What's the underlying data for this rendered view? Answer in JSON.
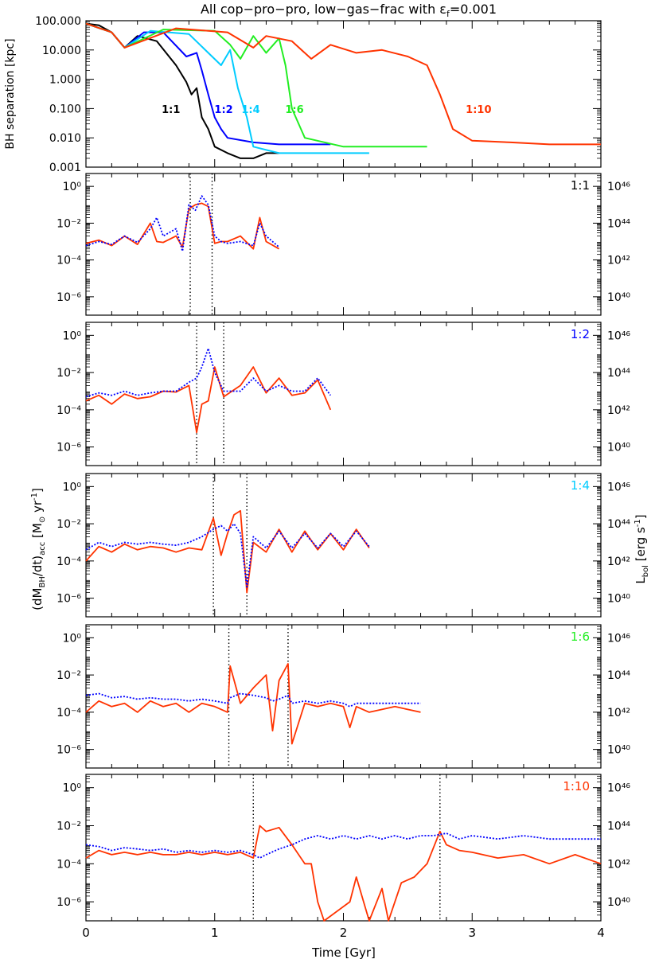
{
  "figure": {
    "title": "All cop−pro−pro, low−gas−frac with ε_f=0.001",
    "title_main": "All cop−pro−pro, low−gas−frac with ε",
    "title_sub": "f",
    "title_tail": "=0.001",
    "xlabel": "Time [Gyr]",
    "xticks": [
      "0",
      "1",
      "2",
      "3",
      "4"
    ],
    "xlim": [
      0,
      4
    ],
    "left_ylabel": "(dM_BH/dt)_acc [M⊙ yr^-1]",
    "right_ylabel": "L_bol [erg s^-1]"
  },
  "colors": {
    "1:1": "#000000",
    "1:2": "#0000ff",
    "1:4": "#00ccff",
    "1:6": "#22ee22",
    "1:10": "#ff3300",
    "dotted_line": "#0000ff",
    "accretion_line": "#ff3300"
  },
  "chart_data": [
    {
      "type": "line",
      "title": "All cop−pro−pro, low−gas−frac with ε_f=0.001",
      "xlabel": "",
      "ylabel": "BH separation [kpc]",
      "yscale": "log",
      "ylim": [
        0.001,
        100
      ],
      "xlim": [
        0,
        4
      ],
      "yticks": [
        "100.000",
        "10.000",
        "1.000",
        "0.100",
        "0.010",
        "0.001"
      ],
      "series": [
        {
          "name": "1:1",
          "x": [
            0,
            0.1,
            0.2,
            0.3,
            0.4,
            0.55,
            0.7,
            0.78,
            0.82,
            0.86,
            0.9,
            0.95,
            1.0,
            1.1,
            1.2,
            1.3,
            1.4,
            1.5
          ],
          "y": [
            80,
            70,
            40,
            12,
            30,
            20,
            3,
            0.8,
            0.3,
            0.5,
            0.05,
            0.02,
            0.005,
            0.003,
            0.002,
            0.002,
            0.003,
            0.003
          ]
        },
        {
          "name": "1:2",
          "x": [
            0,
            0.2,
            0.3,
            0.45,
            0.6,
            0.78,
            0.86,
            0.9,
            0.95,
            1.0,
            1.05,
            1.1,
            1.3,
            1.5,
            1.7,
            1.9
          ],
          "y": [
            80,
            40,
            12,
            40,
            40,
            6,
            8,
            2,
            0.3,
            0.05,
            0.02,
            0.01,
            0.007,
            0.006,
            0.006,
            0.006
          ]
        },
        {
          "name": "1:4",
          "x": [
            0,
            0.2,
            0.3,
            0.5,
            0.8,
            0.95,
            1.05,
            1.12,
            1.18,
            1.25,
            1.3,
            1.5,
            1.8,
            2.0,
            2.2
          ],
          "y": [
            80,
            40,
            12,
            45,
            35,
            8,
            3,
            10,
            0.5,
            0.05,
            0.005,
            0.003,
            0.003,
            0.003,
            0.003
          ]
        },
        {
          "name": "1:6",
          "x": [
            0,
            0.2,
            0.3,
            0.6,
            1.0,
            1.12,
            1.2,
            1.3,
            1.4,
            1.5,
            1.55,
            1.6,
            1.7,
            2.0,
            2.3,
            2.65
          ],
          "y": [
            80,
            40,
            12,
            50,
            45,
            15,
            5,
            30,
            8,
            25,
            3,
            0.1,
            0.01,
            0.005,
            0.005,
            0.005
          ]
        },
        {
          "name": "1:10",
          "x": [
            0,
            0.2,
            0.3,
            0.7,
            1.1,
            1.3,
            1.4,
            1.6,
            1.75,
            1.9,
            2.1,
            2.3,
            2.5,
            2.65,
            2.75,
            2.85,
            3.0,
            3.3,
            3.6,
            4.0
          ],
          "y": [
            80,
            40,
            12,
            55,
            40,
            12,
            30,
            20,
            5,
            15,
            8,
            10,
            6,
            3,
            0.3,
            0.02,
            0.008,
            0.007,
            0.006,
            0.006
          ]
        }
      ],
      "annotations": [
        "1:1",
        "1:2",
        "1:4",
        "1:6",
        "1:10"
      ]
    },
    {
      "type": "line",
      "label": "1:1",
      "label_color": "#000000",
      "ylabel": "(dM_BH/dt)_acc [M⊙ yr^-1]",
      "right_ylabel": "L_bol [erg s^-1]",
      "yscale": "log",
      "ylim": [
        1e-07,
        5
      ],
      "xlim": [
        0,
        4
      ],
      "yticks": [
        "10^0",
        "10^-2",
        "10^-4",
        "10^-6"
      ],
      "right_yticks": [
        "10^46",
        "10^44",
        "10^42",
        "10^40"
      ],
      "vlines": [
        0.81,
        0.98
      ],
      "series": [
        {
          "name": "accretion",
          "x": [
            0,
            0.1,
            0.2,
            0.3,
            0.4,
            0.5,
            0.55,
            0.6,
            0.7,
            0.75,
            0.8,
            0.85,
            0.9,
            0.95,
            1.0,
            1.05,
            1.1,
            1.2,
            1.3,
            1.35,
            1.4,
            1.5
          ],
          "y": [
            0.0008,
            0.0012,
            0.0006,
            0.002,
            0.0007,
            0.01,
            0.001,
            0.0009,
            0.002,
            0.0005,
            0.06,
            0.1,
            0.12,
            0.08,
            0.0008,
            0.001,
            0.001,
            0.002,
            0.0004,
            0.02,
            0.001,
            0.0004
          ]
        },
        {
          "name": "luminosity",
          "x": [
            0,
            0.1,
            0.2,
            0.3,
            0.4,
            0.5,
            0.55,
            0.6,
            0.7,
            0.75,
            0.8,
            0.85,
            0.9,
            0.95,
            1.0,
            1.05,
            1.1,
            1.2,
            1.3,
            1.35,
            1.4,
            1.5
          ],
          "y": [
            0.0006,
            0.001,
            0.0007,
            0.002,
            0.0009,
            0.005,
            0.02,
            0.002,
            0.005,
            0.0003,
            0.1,
            0.05,
            0.3,
            0.1,
            0.002,
            0.001,
            0.0008,
            0.001,
            0.0006,
            0.01,
            0.002,
            0.0005
          ]
        }
      ]
    },
    {
      "type": "line",
      "label": "1:2",
      "label_color": "#0000ff",
      "yscale": "log",
      "ylim": [
        1e-07,
        5
      ],
      "xlim": [
        0,
        4
      ],
      "yticks": [
        "10^0",
        "10^-2",
        "10^-4",
        "10^-6"
      ],
      "right_yticks": [
        "10^46",
        "10^44",
        "10^42",
        "10^40"
      ],
      "vlines": [
        0.86,
        1.07
      ],
      "series": [
        {
          "name": "accretion",
          "x": [
            0,
            0.1,
            0.2,
            0.3,
            0.4,
            0.5,
            0.6,
            0.7,
            0.8,
            0.86,
            0.9,
            0.95,
            1.0,
            1.07,
            1.2,
            1.3,
            1.4,
            1.5,
            1.6,
            1.7,
            1.8,
            1.9
          ],
          "y": [
            0.0003,
            0.0006,
            0.0002,
            0.0007,
            0.0004,
            0.0005,
            0.001,
            0.0009,
            0.002,
            6e-06,
            0.0002,
            0.0003,
            0.02,
            0.0005,
            0.002,
            0.02,
            0.0008,
            0.005,
            0.0006,
            0.0008,
            0.004,
            0.0001
          ]
        },
        {
          "name": "luminosity",
          "x": [
            0,
            0.1,
            0.2,
            0.3,
            0.4,
            0.5,
            0.6,
            0.7,
            0.8,
            0.86,
            0.9,
            0.95,
            1.0,
            1.07,
            1.2,
            1.3,
            1.4,
            1.5,
            1.6,
            1.7,
            1.8,
            1.9
          ],
          "y": [
            0.0005,
            0.0008,
            0.0006,
            0.001,
            0.0006,
            0.0008,
            0.001,
            0.001,
            0.003,
            0.005,
            0.02,
            0.2,
            0.01,
            0.001,
            0.001,
            0.005,
            0.001,
            0.002,
            0.001,
            0.001,
            0.005,
            0.0006
          ]
        }
      ]
    },
    {
      "type": "line",
      "label": "1:4",
      "label_color": "#00ccff",
      "yscale": "log",
      "ylim": [
        1e-07,
        5
      ],
      "xlim": [
        0,
        4
      ],
      "yticks": [
        "10^0",
        "10^-2",
        "10^-4",
        "10^-6"
      ],
      "right_yticks": [
        "10^46",
        "10^44",
        "10^42",
        "10^40"
      ],
      "vlines": [
        0.99,
        1.25
      ],
      "series": [
        {
          "name": "accretion",
          "x": [
            0,
            0.1,
            0.2,
            0.3,
            0.4,
            0.5,
            0.6,
            0.7,
            0.8,
            0.9,
            0.99,
            1.05,
            1.1,
            1.15,
            1.2,
            1.25,
            1.3,
            1.4,
            1.5,
            1.6,
            1.7,
            1.8,
            1.9,
            2.0,
            2.1,
            2.2
          ],
          "y": [
            0.0001,
            0.0006,
            0.0003,
            0.0008,
            0.0004,
            0.0006,
            0.0005,
            0.0003,
            0.0005,
            0.0004,
            0.02,
            0.0002,
            0.003,
            0.03,
            0.05,
            2e-06,
            0.001,
            0.0003,
            0.005,
            0.0003,
            0.004,
            0.0004,
            0.003,
            0.0004,
            0.005,
            0.0005
          ]
        },
        {
          "name": "luminosity",
          "x": [
            0,
            0.1,
            0.2,
            0.3,
            0.4,
            0.5,
            0.6,
            0.7,
            0.8,
            0.9,
            0.99,
            1.05,
            1.1,
            1.15,
            1.2,
            1.25,
            1.3,
            1.4,
            1.5,
            1.6,
            1.7,
            1.8,
            1.9,
            2.0,
            2.1,
            2.2
          ],
          "y": [
            0.0004,
            0.001,
            0.0006,
            0.001,
            0.0008,
            0.001,
            0.0008,
            0.0007,
            0.001,
            0.002,
            0.005,
            0.008,
            0.004,
            0.01,
            0.003,
            4e-06,
            0.002,
            0.0005,
            0.004,
            0.0005,
            0.003,
            0.0005,
            0.003,
            0.0006,
            0.004,
            0.0006
          ]
        }
      ]
    },
    {
      "type": "line",
      "label": "1:6",
      "label_color": "#22ee22",
      "yscale": "log",
      "ylim": [
        1e-07,
        5
      ],
      "xlim": [
        0,
        4
      ],
      "yticks": [
        "10^0",
        "10^-2",
        "10^-4",
        "10^-6"
      ],
      "right_yticks": [
        "10^46",
        "10^44",
        "10^42",
        "10^40"
      ],
      "vlines": [
        1.11,
        1.57
      ],
      "series": [
        {
          "name": "accretion",
          "x": [
            0,
            0.1,
            0.2,
            0.3,
            0.4,
            0.5,
            0.6,
            0.7,
            0.8,
            0.9,
            1.0,
            1.1,
            1.12,
            1.2,
            1.3,
            1.4,
            1.45,
            1.5,
            1.57,
            1.6,
            1.7,
            1.8,
            1.9,
            2.0,
            2.05,
            2.1,
            2.2,
            2.4,
            2.6
          ],
          "y": [
            0.0001,
            0.0004,
            0.0002,
            0.0003,
            0.0001,
            0.0004,
            0.0002,
            0.0003,
            0.0001,
            0.0003,
            0.0002,
            0.0001,
            0.03,
            0.0003,
            0.002,
            0.01,
            1e-05,
            0.005,
            0.04,
            2e-06,
            0.0003,
            0.0002,
            0.0003,
            0.0002,
            1.5e-05,
            0.0002,
            0.0001,
            0.0002,
            0.0001
          ]
        },
        {
          "name": "luminosity",
          "x": [
            0,
            0.1,
            0.2,
            0.3,
            0.4,
            0.5,
            0.6,
            0.7,
            0.8,
            0.9,
            1.0,
            1.1,
            1.12,
            1.2,
            1.3,
            1.4,
            1.45,
            1.5,
            1.57,
            1.6,
            1.7,
            1.8,
            1.9,
            2.0,
            2.05,
            2.1,
            2.2,
            2.4,
            2.6
          ],
          "y": [
            0.0008,
            0.001,
            0.0006,
            0.0007,
            0.0005,
            0.0006,
            0.0005,
            0.0005,
            0.0004,
            0.0005,
            0.0004,
            0.0003,
            0.0006,
            0.001,
            0.0008,
            0.0006,
            0.0004,
            0.0005,
            0.0008,
            0.0003,
            0.0004,
            0.0003,
            0.0004,
            0.0003,
            0.0002,
            0.0003,
            0.0003,
            0.0003,
            0.0003
          ]
        }
      ]
    },
    {
      "type": "line",
      "label": "1:10",
      "label_color": "#ff3300",
      "yscale": "log",
      "ylim": [
        1e-07,
        5
      ],
      "xlim": [
        0,
        4
      ],
      "yticks": [
        "10^0",
        "10^-2",
        "10^-4",
        "10^-6"
      ],
      "right_yticks": [
        "10^46",
        "10^44",
        "10^42",
        "10^40"
      ],
      "vlines": [
        1.3,
        2.75
      ],
      "series": [
        {
          "name": "accretion",
          "x": [
            0,
            0.1,
            0.2,
            0.3,
            0.4,
            0.5,
            0.6,
            0.7,
            0.8,
            0.9,
            1.0,
            1.1,
            1.2,
            1.3,
            1.35,
            1.4,
            1.5,
            1.6,
            1.7,
            1.75,
            1.8,
            1.85,
            2.05,
            2.1,
            2.2,
            2.3,
            2.35,
            2.45,
            2.55,
            2.65,
            2.75,
            2.8,
            2.9,
            3.0,
            3.2,
            3.4,
            3.6,
            3.8,
            4.0
          ],
          "y": [
            0.0002,
            0.0005,
            0.0003,
            0.0004,
            0.0003,
            0.0004,
            0.0003,
            0.0003,
            0.0004,
            0.0003,
            0.0004,
            0.0003,
            0.0004,
            0.0002,
            0.01,
            0.005,
            0.008,
            0.001,
            0.0001,
            0.0001,
            1e-06,
            1e-07,
            1e-06,
            2e-05,
            1e-07,
            5e-06,
            1e-07,
            1e-05,
            2e-05,
            0.0001,
            0.005,
            0.001,
            0.0005,
            0.0004,
            0.0002,
            0.0003,
            0.0001,
            0.0003,
            0.0001
          ]
        },
        {
          "name": "luminosity",
          "x": [
            0,
            0.1,
            0.2,
            0.3,
            0.4,
            0.5,
            0.6,
            0.7,
            0.8,
            0.9,
            1.0,
            1.1,
            1.2,
            1.3,
            1.35,
            1.4,
            1.5,
            1.6,
            1.7,
            1.8,
            1.9,
            2.0,
            2.1,
            2.2,
            2.3,
            2.4,
            2.5,
            2.6,
            2.7,
            2.8,
            2.9,
            3.0,
            3.2,
            3.4,
            3.6,
            3.8,
            4.0
          ],
          "y": [
            0.001,
            0.0008,
            0.0005,
            0.0007,
            0.0006,
            0.0005,
            0.0006,
            0.0004,
            0.0005,
            0.0004,
            0.0005,
            0.0004,
            0.0005,
            0.0003,
            0.0002,
            0.0003,
            0.0006,
            0.001,
            0.002,
            0.003,
            0.002,
            0.003,
            0.002,
            0.003,
            0.002,
            0.003,
            0.002,
            0.003,
            0.003,
            0.004,
            0.002,
            0.003,
            0.002,
            0.003,
            0.002,
            0.002,
            0.002
          ]
        }
      ]
    }
  ]
}
